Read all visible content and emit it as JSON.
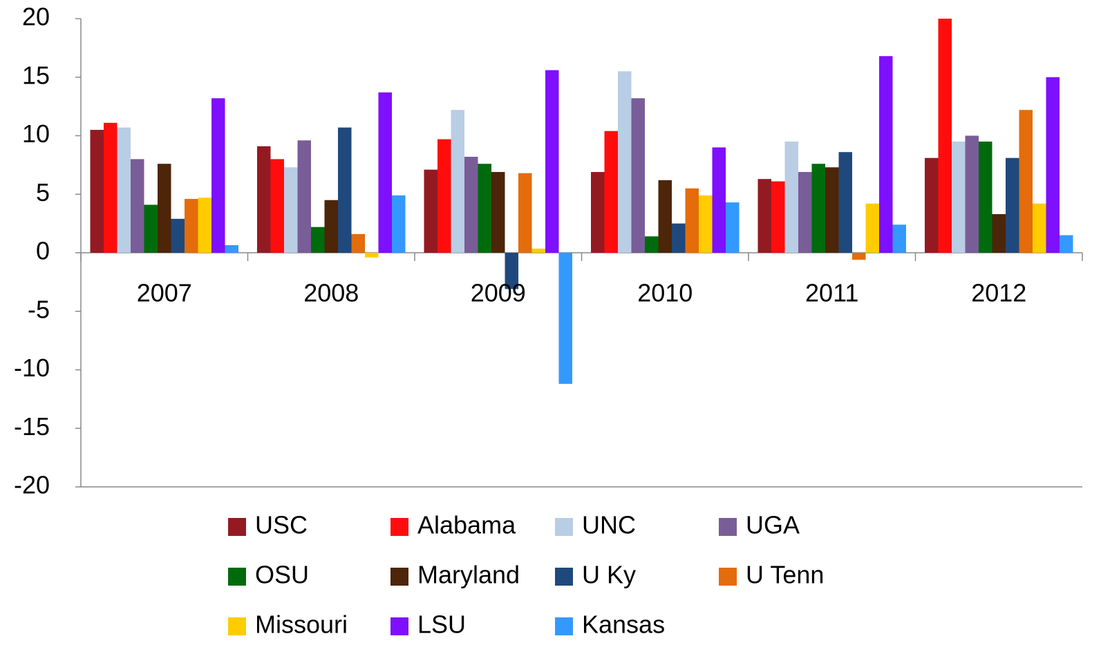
{
  "chart_data": {
    "type": "bar",
    "categories": [
      "2007",
      "2008",
      "2009",
      "2010",
      "2011",
      "2012"
    ],
    "series": [
      {
        "name": "USC",
        "color": "#941a22",
        "values": [
          10.5,
          9.1,
          7.1,
          6.9,
          6.3,
          8.1
        ]
      },
      {
        "name": "Alabama",
        "color": "#ff0d0d",
        "values": [
          11.1,
          8.0,
          9.7,
          10.4,
          6.1,
          20
        ]
      },
      {
        "name": "UNC",
        "color": "#b9cde5",
        "values": [
          10.7,
          7.3,
          12.2,
          15.5,
          9.5,
          9.5
        ]
      },
      {
        "name": "UGA",
        "color": "#795d98",
        "values": [
          8.0,
          9.6,
          8.2,
          13.2,
          6.9,
          10.0
        ]
      },
      {
        "name": "OSU",
        "color": "#006b0d",
        "values": [
          4.1,
          2.2,
          7.6,
          1.4,
          7.6,
          9.5
        ]
      },
      {
        "name": "Maryland",
        "color": "#4d2508",
        "values": [
          7.6,
          4.5,
          6.9,
          6.2,
          7.3,
          3.3
        ]
      },
      {
        "name": "U Ky",
        "color": "#1f497d",
        "values": [
          2.9,
          10.7,
          -3.1,
          2.5,
          8.6,
          8.1
        ]
      },
      {
        "name": "U Tenn",
        "color": "#e46c0a",
        "values": [
          4.6,
          1.6,
          6.8,
          5.5,
          -0.6,
          12.2
        ]
      },
      {
        "name": "Missouri",
        "color": "#ffcc00",
        "values": [
          4.7,
          -0.4,
          0.35,
          4.9,
          4.2,
          4.2
        ]
      },
      {
        "name": "LSU",
        "color": "#7f0fff",
        "values": [
          13.2,
          13.7,
          15.6,
          9.0,
          16.8,
          15.0
        ]
      },
      {
        "name": "Kansas",
        "color": "#3399ff",
        "values": [
          0.65,
          4.9,
          -11.2,
          4.3,
          2.4,
          1.5
        ]
      }
    ],
    "ylim": [
      -20,
      20
    ],
    "yticks": [
      -20,
      -15,
      -10,
      -5,
      0,
      5,
      10,
      15,
      20
    ],
    "grid": false,
    "legend": "bottom"
  }
}
